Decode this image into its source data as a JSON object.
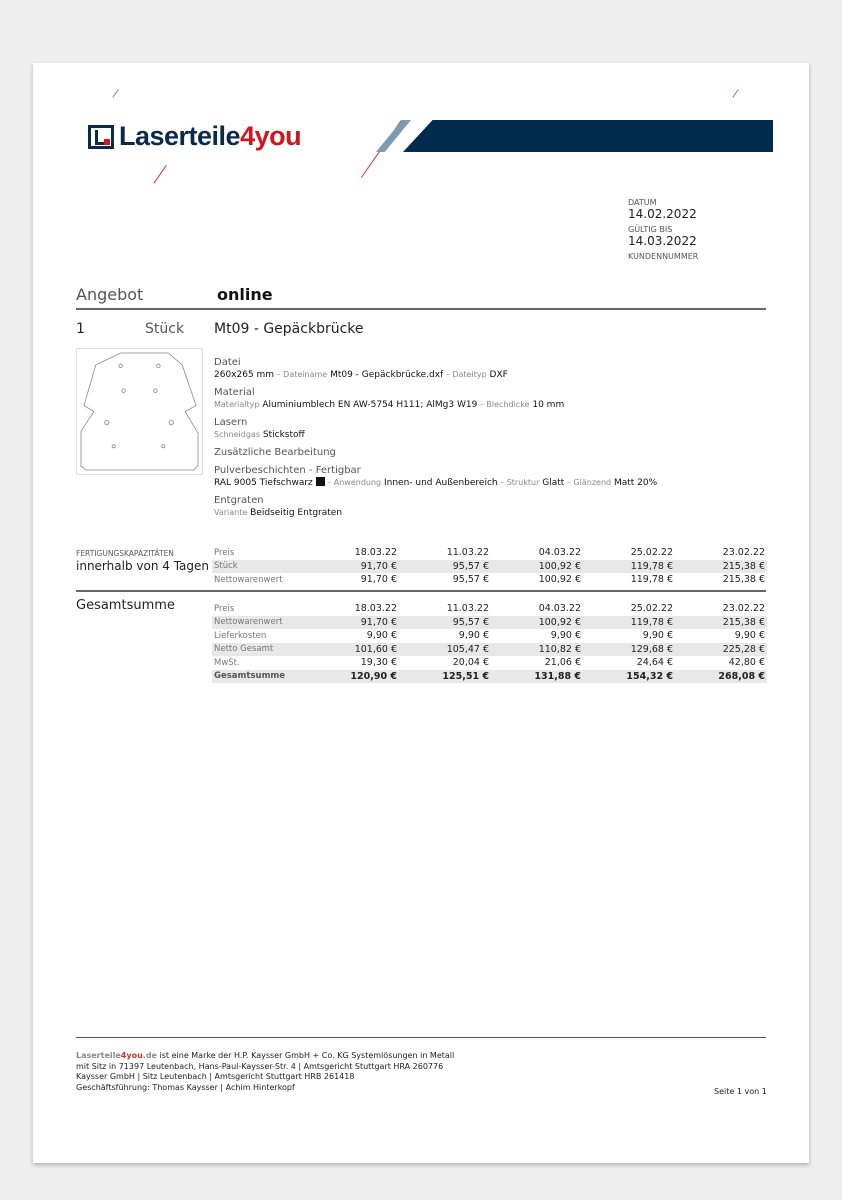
{
  "brand": {
    "logo_text_main": "Laserteile",
    "logo_text_accent": "4you",
    "accent": "#d6121b",
    "navy": "#002a4e"
  },
  "meta": {
    "datum_label": "DATUM",
    "datum": "14.02.2022",
    "gueltig_label": "GÜLTIG BIS",
    "gueltig": "14.03.2022",
    "kunde_label": "KUNDENNUMMER"
  },
  "header": {
    "angebot": "Angebot",
    "channel": "online"
  },
  "item": {
    "qty": "1",
    "unit": "Stück",
    "title": "Mt09 - Gepäckbrücke",
    "details": [
      {
        "head": "Datei",
        "parts": [
          [
            "",
            "260x265 mm"
          ],
          [
            "Dateiname",
            "Mt09 - Gepäckbrücke.dxf"
          ],
          [
            "Dateityp",
            "DXF"
          ]
        ]
      },
      {
        "head": "Material",
        "parts": [
          [
            "Materialtyp",
            "Aluminiumblech EN AW-5754 H111; AlMg3 W19"
          ],
          [
            "Blechdicke",
            "10 mm"
          ]
        ]
      },
      {
        "head": "Lasern",
        "parts": [
          [
            "Schneidgas",
            "Stickstoff"
          ]
        ]
      },
      {
        "head": "Zusätzliche Bearbeitung",
        "parts": []
      },
      {
        "head": "Pulverbeschichten - Fertigbar",
        "parts": [
          [
            "",
            "RAL 9005 Tiefschwarz"
          ],
          [
            "Anwendung",
            "Innen- und Außenbereich"
          ],
          [
            "Struktur",
            "Glatt"
          ],
          [
            "Glänzend",
            "Matt 20%"
          ]
        ],
        "swatch": "#111111"
      },
      {
        "head": "Entgraten",
        "parts": [
          [
            "Variante",
            "Beidseitig Entgraten"
          ]
        ]
      }
    ]
  },
  "capacity": {
    "label": "FERTIGUNGSKAPAZITÄTEN",
    "value": "innerhalb von 4 Tagen",
    "rows": [
      {
        "label": "Preis",
        "values": [
          "18.03.22",
          "11.03.22",
          "04.03.22",
          "25.02.22",
          "23.02.22"
        ]
      },
      {
        "label": "Stück",
        "values": [
          "91,70 €",
          "95,57 €",
          "100,92 €",
          "119,78 €",
          "215,38 €"
        ]
      },
      {
        "label": "Nettowarenwert",
        "values": [
          "91,70 €",
          "95,57 €",
          "100,92 €",
          "119,78 €",
          "215,38 €"
        ]
      }
    ]
  },
  "total": {
    "label": "Gesamtsumme",
    "rows": [
      {
        "label": "Preis",
        "values": [
          "18.03.22",
          "11.03.22",
          "04.03.22",
          "25.02.22",
          "23.02.22"
        ]
      },
      {
        "label": "Nettowarenwert",
        "values": [
          "91,70 €",
          "95,57 €",
          "100,92 €",
          "119,78 €",
          "215,38 €"
        ]
      },
      {
        "label": "Lieferkosten",
        "values": [
          "9,90 €",
          "9,90 €",
          "9,90 €",
          "9,90 €",
          "9,90 €"
        ]
      },
      {
        "label": "Netto Gesamt",
        "values": [
          "101,60 €",
          "105,47 €",
          "110,82 €",
          "129,68 €",
          "225,28 €"
        ]
      },
      {
        "label": "MwSt.",
        "values": [
          "19,30 €",
          "20,04 €",
          "21,06 €",
          "24,64 €",
          "42,80 €"
        ]
      },
      {
        "label": "Gesamtsumme",
        "values": [
          "120,90 €",
          "125,51 €",
          "131,88 €",
          "154,32 €",
          "268,08 €"
        ]
      }
    ]
  },
  "footer": {
    "brand_a": "Laserteile",
    "brand_b": "4you",
    "brand_c": ".de",
    "line1": " ist eine Marke der H.P. Kaysser GmbH + Co. KG Systemlösungen in Metall",
    "line2": "mit Sitz in 71397 Leutenbach, Hans-Paul-Kaysser-Str. 4 | Amtsgericht Stuttgart HRA 260776",
    "line3": "Kaysser GmbH | Sitz Leutenbach | Amtsgericht Stuttgart HRB 261418",
    "line4": "Geschäftsführung: Thomas Kaysser | Achim Hinterkopf",
    "page": "Seite 1 von 1"
  }
}
